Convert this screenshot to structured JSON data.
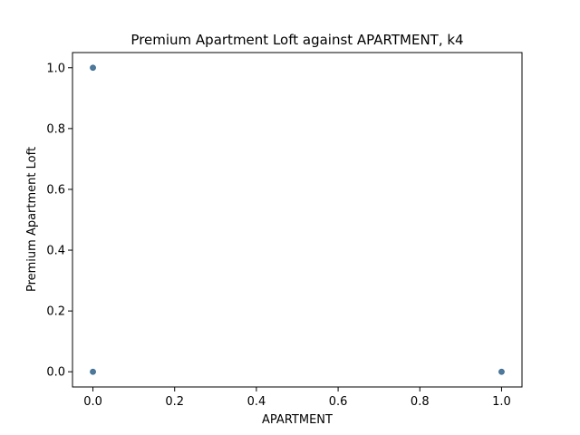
{
  "chart_data": {
    "type": "scatter",
    "title": "Premium Apartment Loft against APARTMENT, k4",
    "xlabel": "APARTMENT",
    "ylabel": "Premium Apartment Loft",
    "xlim": [
      -0.05,
      1.05
    ],
    "ylim": [
      -0.05,
      1.05
    ],
    "xticks": [
      0.0,
      0.2,
      0.4,
      0.6,
      0.8,
      1.0
    ],
    "yticks": [
      0.0,
      0.2,
      0.4,
      0.6,
      0.8,
      1.0
    ],
    "xtick_labels": [
      "0.0",
      "0.2",
      "0.4",
      "0.6",
      "0.8",
      "1.0"
    ],
    "ytick_labels": [
      "0.0",
      "0.2",
      "0.4",
      "0.6",
      "0.8",
      "1.0"
    ],
    "grid": false,
    "marker_color": "#3a6a90",
    "points": [
      {
        "x": 0,
        "y": 1
      },
      {
        "x": 0,
        "y": 0
      },
      {
        "x": 1,
        "y": 0
      }
    ]
  }
}
